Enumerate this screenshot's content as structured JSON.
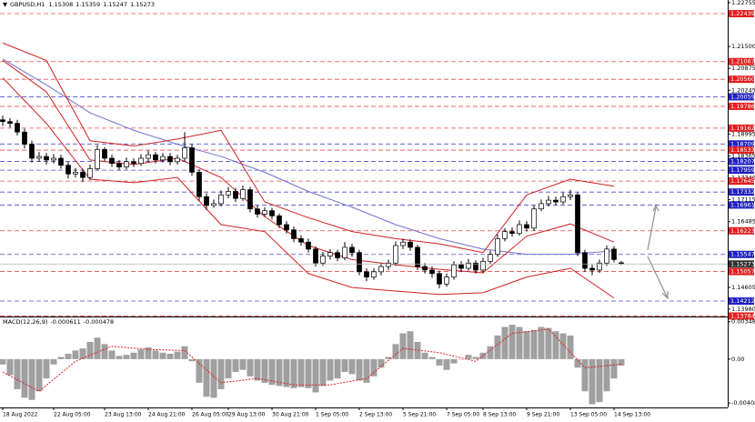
{
  "chart_data": [
    {
      "type": "candlestick",
      "symbol": "GBPUSD,H1",
      "header_values": [
        "1.15308",
        "1.15359",
        "1.15247",
        "1.15273"
      ],
      "categories": [
        "18 Aug 2022",
        null,
        null,
        null,
        null,
        null,
        null,
        "22 Aug 05:00",
        null,
        null,
        null,
        null,
        null,
        null,
        "23 Aug 13:00",
        null,
        null,
        null,
        null,
        null,
        "24 Aug 21:00",
        null,
        null,
        null,
        null,
        null,
        "26 Aug 05:00",
        null,
        null,
        null,
        null,
        "29 Aug 13:00",
        null,
        null,
        null,
        null,
        null,
        "30 Aug 21:00",
        null,
        null,
        null,
        null,
        null,
        "1 Sep 05:00",
        null,
        null,
        null,
        null,
        null,
        "2 Sep 13:00",
        null,
        null,
        null,
        null,
        null,
        "5 Sep 21:00",
        null,
        null,
        null,
        null,
        null,
        "7 Sep 05:00",
        null,
        null,
        null,
        null,
        "8 Sep 13:00",
        null,
        null,
        null,
        null,
        null,
        "9 Sep 21:00",
        null,
        null,
        null,
        null,
        null,
        "13 Sep 05:00",
        null,
        null,
        null,
        null,
        null,
        "14 Sep 13:00",
        null
      ],
      "open": [
        1.194,
        1.1935,
        1.193,
        1.1905,
        1.187,
        1.183,
        1.1835,
        1.1825,
        1.183,
        1.181,
        1.1785,
        1.179,
        1.1775,
        1.18,
        1.1855,
        1.183,
        1.1815,
        1.1805,
        1.182,
        1.1815,
        1.183,
        1.184,
        1.1825,
        1.1835,
        1.182,
        1.183,
        1.186,
        1.179,
        1.172,
        1.1695,
        1.17,
        1.1725,
        1.1735,
        1.1715,
        1.174,
        1.1685,
        1.167,
        1.168,
        1.1665,
        1.164,
        1.1625,
        1.16,
        1.159,
        1.157,
        1.153,
        1.155,
        1.156,
        1.1545,
        1.1575,
        1.156,
        1.1505,
        1.149,
        1.1505,
        1.152,
        1.153,
        1.158,
        1.159,
        1.1575,
        1.152,
        1.151,
        1.15,
        1.147,
        1.149,
        1.1525,
        1.1515,
        1.153,
        1.151,
        1.1535,
        1.1555,
        1.16,
        1.162,
        1.1615,
        1.164,
        1.163,
        1.1685,
        1.17,
        1.171,
        1.1705,
        1.172,
        1.1725,
        1.156,
        1.1515,
        1.151,
        1.153,
        1.157,
        1.15308
      ],
      "high": [
        1.1952,
        1.1945,
        1.194,
        1.1915,
        1.188,
        1.1848,
        1.1845,
        1.1842,
        1.184,
        1.182,
        1.1802,
        1.18,
        1.1812,
        1.1868,
        1.1862,
        1.184,
        1.1825,
        1.1832,
        1.183,
        1.1842,
        1.1852,
        1.1848,
        1.1845,
        1.1845,
        1.184,
        1.1905,
        1.187,
        1.1798,
        1.173,
        1.1712,
        1.1738,
        1.1748,
        1.1745,
        1.1752,
        1.1748,
        1.1695,
        1.169,
        1.1688,
        1.1672,
        1.165,
        1.1635,
        1.161,
        1.16,
        1.1578,
        1.1562,
        1.157,
        1.1568,
        1.159,
        1.1585,
        1.1568,
        1.1515,
        1.1515,
        1.153,
        1.154,
        1.1592,
        1.16,
        1.1598,
        1.1582,
        1.153,
        1.152,
        1.1508,
        1.15,
        1.1535,
        1.1535,
        1.1542,
        1.1538,
        1.1545,
        1.1565,
        1.1612,
        1.163,
        1.1632,
        1.1652,
        1.165,
        1.1695,
        1.1712,
        1.1722,
        1.172,
        1.1732,
        1.174,
        1.1732,
        1.1568,
        1.1525,
        1.154,
        1.158,
        1.1578,
        1.15359
      ],
      "low": [
        1.1922,
        1.1918,
        1.1895,
        1.1858,
        1.1818,
        1.182,
        1.1812,
        1.1815,
        1.18,
        1.1772,
        1.1775,
        1.1762,
        1.1768,
        1.1795,
        1.1822,
        1.1805,
        1.1795,
        1.1798,
        1.1805,
        1.1808,
        1.182,
        1.1815,
        1.1818,
        1.181,
        1.1812,
        1.1822,
        1.178,
        1.1708,
        1.1682,
        1.1688,
        1.1692,
        1.1715,
        1.1705,
        1.1708,
        1.1675,
        1.166,
        1.1662,
        1.1655,
        1.163,
        1.1615,
        1.159,
        1.158,
        1.156,
        1.152,
        1.1522,
        1.154,
        1.1535,
        1.1538,
        1.1548,
        1.1495,
        1.1478,
        1.1482,
        1.1495,
        1.151,
        1.1522,
        1.157,
        1.1565,
        1.151,
        1.15,
        1.1488,
        1.1458,
        1.1462,
        1.1482,
        1.1505,
        1.1508,
        1.15,
        1.1502,
        1.1528,
        1.1548,
        1.1592,
        1.1605,
        1.1608,
        1.162,
        1.1622,
        1.1678,
        1.1692,
        1.1695,
        1.1698,
        1.171,
        1.155,
        1.1505,
        1.1495,
        1.1502,
        1.1522,
        1.1532,
        1.15247
      ],
      "close": [
        1.1935,
        1.193,
        1.1905,
        1.187,
        1.183,
        1.1835,
        1.1825,
        1.183,
        1.181,
        1.1785,
        1.179,
        1.1775,
        1.18,
        1.1855,
        1.183,
        1.1815,
        1.1805,
        1.182,
        1.1815,
        1.183,
        1.184,
        1.1825,
        1.1835,
        1.182,
        1.183,
        1.186,
        1.179,
        1.172,
        1.1695,
        1.17,
        1.1725,
        1.1735,
        1.1715,
        1.174,
        1.1685,
        1.167,
        1.168,
        1.1665,
        1.164,
        1.1625,
        1.16,
        1.159,
        1.157,
        1.153,
        1.155,
        1.156,
        1.1545,
        1.1575,
        1.156,
        1.1505,
        1.149,
        1.1505,
        1.152,
        1.153,
        1.158,
        1.159,
        1.1575,
        1.152,
        1.151,
        1.15,
        1.147,
        1.149,
        1.1525,
        1.1515,
        1.153,
        1.151,
        1.1535,
        1.1555,
        1.16,
        1.162,
        1.1615,
        1.164,
        1.163,
        1.1685,
        1.17,
        1.171,
        1.1705,
        1.172,
        1.1725,
        1.156,
        1.1515,
        1.151,
        1.153,
        1.157,
        1.154,
        1.15273
      ],
      "up_color": "#ffffff",
      "down_color": "#000000",
      "ylim": [
        1.1377,
        1.2283
      ],
      "yticks": [
        1.22755,
        {
          "value": 1.215,
          "label": "1.21500"
        },
        1.20875,
        1.20245,
        1.18995,
        1.18365,
        {
          "value": 1.1774,
          "label": "1.17740"
        },
        1.17115,
        1.16485,
        1.14605,
        {
          "value": 1.1398,
          "label": "1.13980"
        }
      ],
      "levels": [
        {
          "value": 1.22439,
          "label": "1.22439",
          "color": "#e02020"
        },
        {
          "value": 1.21067,
          "label": "1.21067",
          "color": "#e02020"
        },
        {
          "value": 1.2056,
          "label": "1.20560",
          "color": "#e02020"
        },
        {
          "value": 1.20059,
          "label": "1.20059",
          "color": "#2020c0"
        },
        {
          "value": 1.19786,
          "label": "1.19786",
          "color": "#e02020"
        },
        {
          "value": 1.19162,
          "label": "1.19162",
          "color": "#e02020"
        },
        {
          "value": 1.18709,
          "label": "1.18709",
          "color": "#2020c0"
        },
        {
          "value": 1.18533,
          "label": "1.18533",
          "color": "#e02020"
        },
        {
          "value": 1.18207,
          "label": "1.18207",
          "color": "#2020c0"
        },
        {
          "value": 1.17959,
          "label": "1.17959",
          "color": "#2020c0"
        },
        {
          "value": 1.17645,
          "label": "1.17645",
          "color": "#e02020"
        },
        {
          "value": 1.17332,
          "label": "1.17332",
          "color": "#2020c0"
        },
        {
          "value": 1.16961,
          "label": "1.16961",
          "color": "#2020c0"
        },
        {
          "value": 1.16223,
          "label": "1.16223",
          "color": "#e02020"
        },
        {
          "value": 1.15547,
          "label": "1.15547",
          "color": "#2020c0"
        },
        {
          "value": 1.15057,
          "label": "1.15057",
          "color": "#e02020"
        },
        {
          "value": 1.14212,
          "label": "1.14212",
          "color": "#2020c0"
        },
        {
          "value": 1.13784,
          "label": "1.13784",
          "color": "#e02020"
        }
      ],
      "current_price": {
        "value": 1.15273,
        "label": "1.15273",
        "color": "#303030"
      },
      "overlays": [
        {
          "color": "#7070d0",
          "x": [
            0,
            6,
            12,
            18,
            24,
            30,
            36,
            42,
            48,
            54,
            60,
            66,
            72,
            78,
            84
          ],
          "values": [
            1.2114,
            1.204,
            1.196,
            1.191,
            1.187,
            1.1835,
            1.179,
            1.1735,
            1.169,
            1.164,
            1.16,
            1.157,
            1.1555,
            1.1555,
            1.1565
          ]
        },
        {
          "color": "#d02020",
          "x": [
            0,
            6,
            12,
            18,
            24,
            30,
            36,
            42,
            48,
            54,
            60,
            66,
            72,
            78,
            84
          ],
          "values": [
            1.216,
            1.211,
            1.188,
            1.1865,
            1.1885,
            1.191,
            1.1705,
            1.166,
            1.162,
            1.16,
            1.1585,
            1.156,
            1.1725,
            1.177,
            1.175
          ]
        },
        {
          "color": "#d02020",
          "x": [
            0,
            6,
            12,
            18,
            24,
            30,
            36,
            42,
            48,
            54,
            60,
            66,
            72,
            78,
            84
          ],
          "values": [
            1.211,
            1.202,
            1.1825,
            1.1812,
            1.183,
            1.1775,
            1.1663,
            1.158,
            1.154,
            1.1525,
            1.1512,
            1.1502,
            1.1607,
            1.1642,
            1.159
          ]
        },
        {
          "color": "#d02020",
          "x": [
            0,
            6,
            12,
            18,
            24,
            30,
            36,
            42,
            48,
            54,
            60,
            66,
            72,
            78,
            84
          ],
          "values": [
            1.206,
            1.193,
            1.177,
            1.176,
            1.1775,
            1.164,
            1.162,
            1.15,
            1.146,
            1.145,
            1.144,
            1.1445,
            1.149,
            1.1515,
            1.143
          ]
        }
      ]
    },
    {
      "type": "macd",
      "label": "MACD(12,26,9)",
      "label_values": [
        "-0.000611",
        "-0.000478"
      ],
      "color": "#a0a0a0",
      "values": [
        -0.0005,
        -0.0015,
        -0.0028,
        -0.0036,
        -0.0038,
        -0.003,
        -0.0018,
        -0.0005,
        0.0002,
        0.0005,
        0.0008,
        0.001,
        0.0016,
        0.002,
        0.0014,
        0.0008,
        0.0003,
        0.0004,
        0.0006,
        0.0009,
        0.0011,
        0.0008,
        0.0006,
        0.0005,
        0.0007,
        0.0012,
        -0.0002,
        -0.0022,
        -0.0035,
        -0.0036,
        -0.0028,
        -0.0018,
        -0.0012,
        -0.001,
        -0.0016,
        -0.002,
        -0.0022,
        -0.0024,
        -0.0025,
        -0.0026,
        -0.0027,
        -0.0026,
        -0.0027,
        -0.0031,
        -0.0025,
        -0.002,
        -0.0018,
        -0.0012,
        -0.0014,
        -0.002,
        -0.0022,
        -0.0016,
        -0.0008,
        0.0002,
        0.0014,
        0.0024,
        0.0026,
        0.0016,
        0.0006,
        0.0002,
        -0.0006,
        -0.001,
        -0.0004,
        0.0,
        0.0004,
        0.0002,
        0.0006,
        0.0012,
        0.0022,
        0.003,
        0.0032,
        0.003,
        0.0026,
        0.0027,
        0.003,
        0.0029,
        0.0026,
        0.0024,
        0.0022,
        -0.0008,
        -0.003,
        -0.0042,
        -0.004,
        -0.003,
        -0.0018,
        -0.000611
      ],
      "signal": {
        "color": "#e02020",
        "x": [
          0,
          5,
          10,
          15,
          20,
          25,
          30,
          35,
          40,
          45,
          50,
          55,
          60,
          65,
          70,
          75,
          80,
          85
        ],
        "values": [
          -0.0012,
          -0.003,
          -0.0002,
          0.0012,
          0.0009,
          0.0008,
          -0.0022,
          -0.0018,
          -0.0024,
          -0.0024,
          -0.0018,
          0.001,
          0.0006,
          -0.0002,
          0.0024,
          0.0028,
          -0.0008,
          -0.000478
        ]
      },
      "ylim": [
        -0.0045,
        0.0038
      ],
      "yticks": [
        0.003485,
        {
          "value": 0,
          "label": "0.00"
        },
        -0.004085
      ]
    }
  ]
}
